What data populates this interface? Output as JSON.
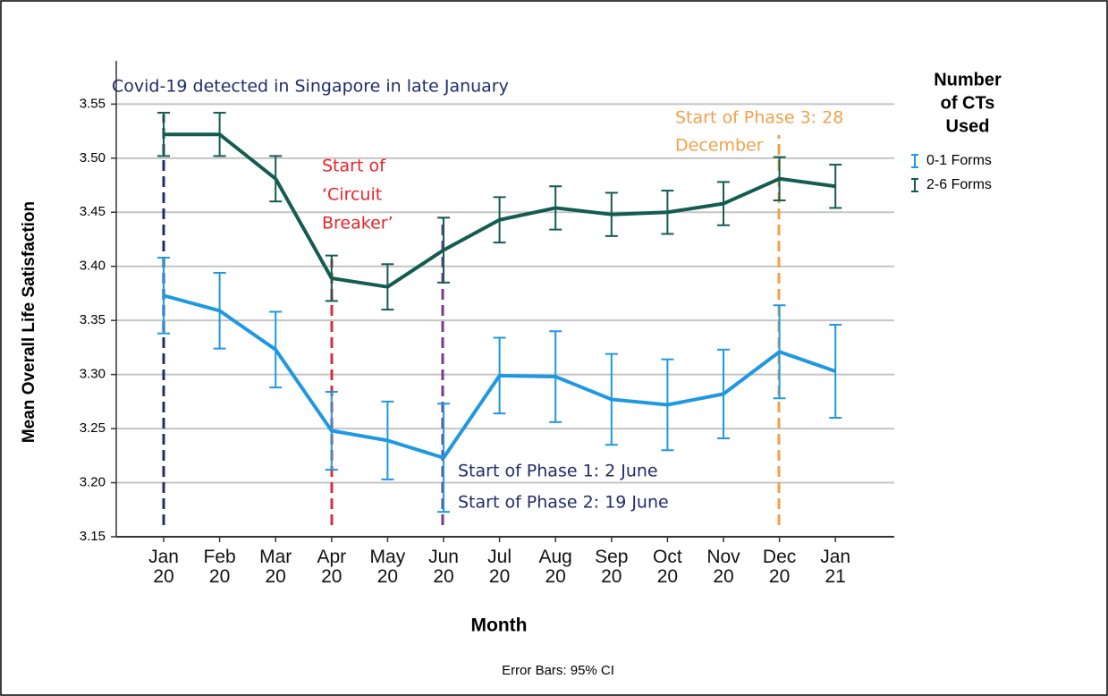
{
  "chart_data": {
    "type": "line",
    "x_label": "Month",
    "y_label": "Mean Overall Life Satisfaction",
    "footnote": "Error Bars: 95% CI",
    "legend_title": [
      "Number",
      "of CTs",
      "Used"
    ],
    "legend_position": "right",
    "grid": true,
    "categories": [
      "Jan 20",
      "Feb 20",
      "Mar 20",
      "Apr 20",
      "May 20",
      "Jun 20",
      "Jul 20",
      "Aug 20",
      "Sep 20",
      "Oct 20",
      "Nov 20",
      "Dec 20",
      "Jan 21"
    ],
    "ylim": [
      3.15,
      3.59
    ],
    "yticks": [
      3.15,
      {
        "value": 3.2,
        "label": "3.20"
      },
      3.25,
      {
        "value": 3.3,
        "label": "3.30"
      },
      3.35,
      {
        "value": 3.4,
        "label": "3.40"
      },
      3.45,
      {
        "value": 3.5,
        "label": "3.50"
      },
      3.55
    ],
    "series": [
      {
        "name": "0-1 Forms",
        "color": "#1f98e2",
        "values": [
          3.373,
          3.359,
          3.323,
          3.248,
          3.239,
          3.223,
          3.299,
          3.298,
          3.277,
          3.272,
          3.282,
          3.321,
          3.303
        ],
        "errors": [
          0.035,
          0.035,
          0.035,
          0.036,
          0.036,
          0.05,
          0.035,
          0.042,
          0.042,
          0.042,
          0.041,
          0.043,
          0.043
        ]
      },
      {
        "name": "2-6 Forms",
        "color": "#145c52",
        "values": [
          3.522,
          3.522,
          3.481,
          3.389,
          3.381,
          3.415,
          3.443,
          3.454,
          3.448,
          3.45,
          3.458,
          3.481,
          3.474
        ],
        "errors": [
          0.02,
          0.02,
          0.021,
          0.021,
          0.021,
          0.03,
          0.021,
          0.02,
          0.02,
          0.02,
          0.02,
          0.02,
          0.02
        ]
      }
    ],
    "annotations": [
      {
        "lines": [
          "Covid-19 detected in Singapore in late January"
        ],
        "color": "#1f2d6b"
      },
      {
        "lines": [
          "Start of",
          "‘Circuit",
          "Breaker’"
        ],
        "color": "#e8232a"
      },
      {
        "lines": [
          "Start of Phase 1: 2 June",
          "Start of Phase 2: 19 June"
        ],
        "color": "#1f2d6b"
      },
      {
        "lines": [
          "Start of Phase 3: 28",
          "December"
        ],
        "color": "#f2a04a"
      }
    ]
  }
}
